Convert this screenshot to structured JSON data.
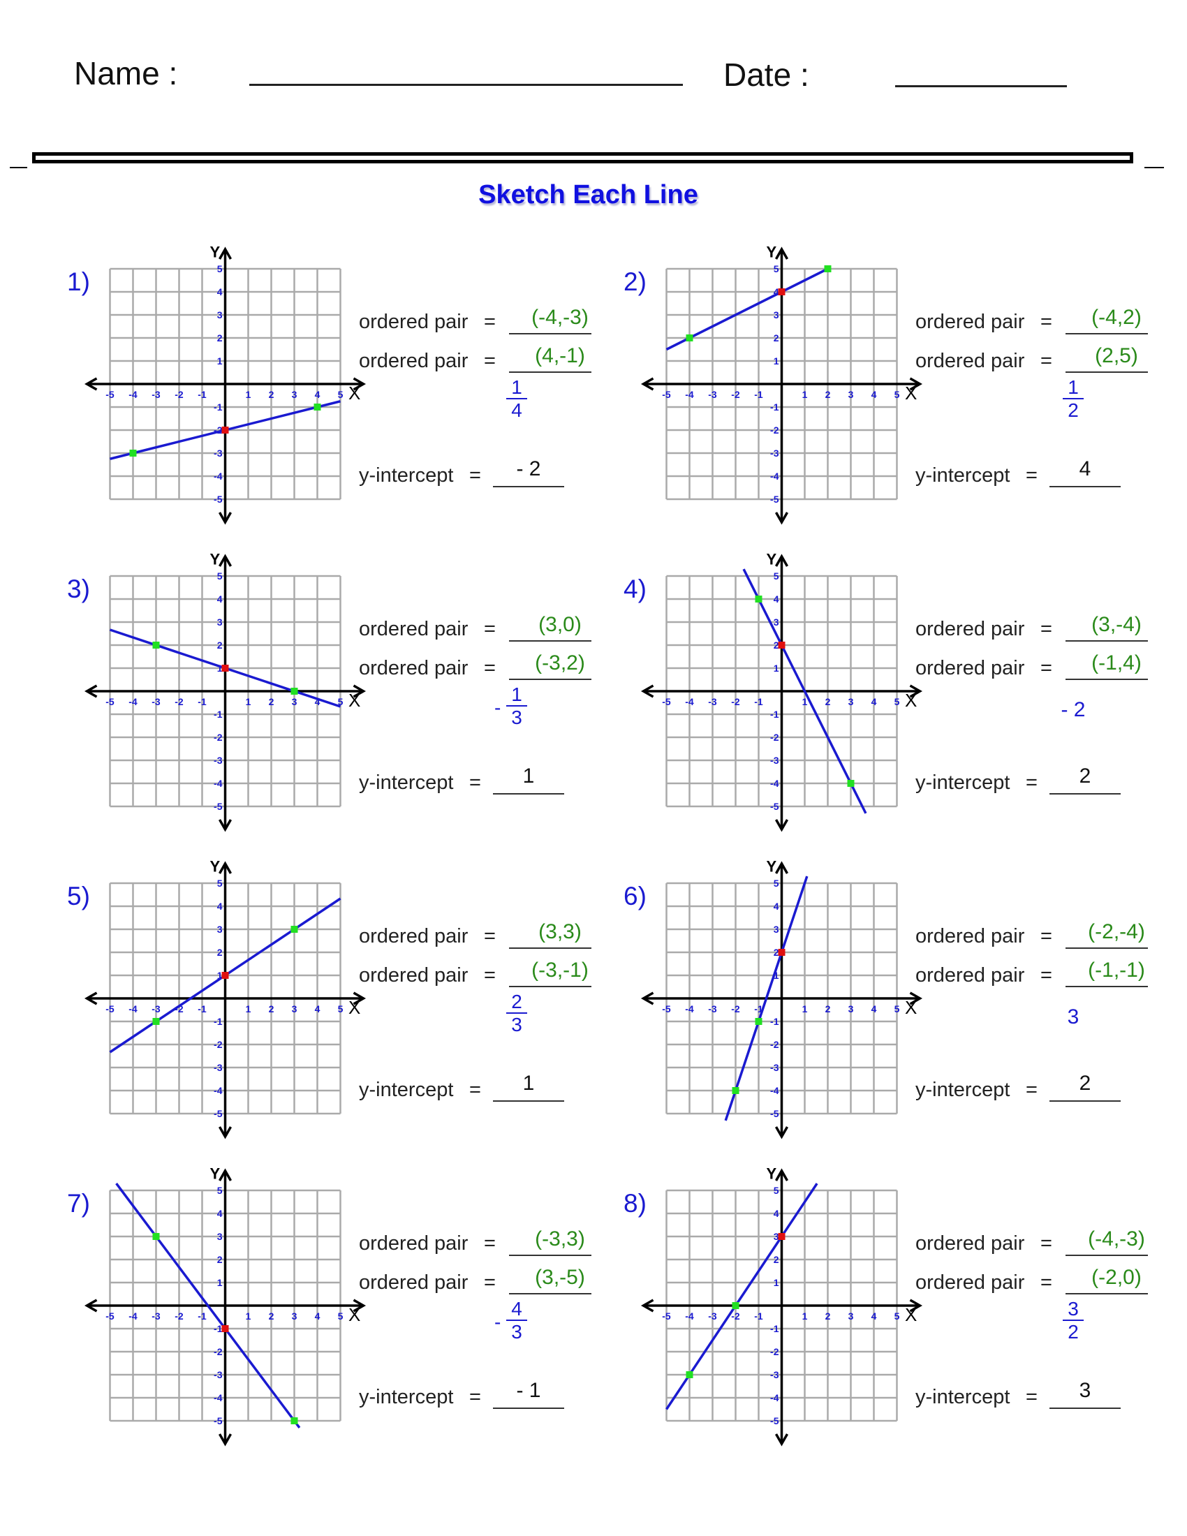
{
  "header": {
    "name_label": "Name :",
    "date_label": "Date :"
  },
  "title": "Sketch Each Line",
  "labels": {
    "ordered_pair": "ordered pair",
    "equals": "=",
    "y_intercept": "y-intercept",
    "x_axis": "X",
    "y_axis": "Y"
  },
  "colors": {
    "line": "#1a1ad0",
    "point": "#22e022",
    "intercept_point": "#e01010",
    "grid": "#aaaaaa",
    "answer": "#2a8a1a",
    "title": "#1010e0"
  },
  "axis_ticks": [
    "-5",
    "-4",
    "-3",
    "-2",
    "-1",
    "1",
    "2",
    "3",
    "4",
    "5"
  ],
  "problems": [
    {
      "number": "1)",
      "pair1": "(-4,-3)",
      "pair2": "(4,-1)",
      "p1": [
        -4,
        -3
      ],
      "p2": [
        4,
        -1
      ],
      "slope": {
        "sign": "",
        "num": "1",
        "den": "4"
      },
      "y_intercept": "- 2",
      "b": -2
    },
    {
      "number": "2)",
      "pair1": "(-4,2)",
      "pair2": "(2,5)",
      "p1": [
        -4,
        2
      ],
      "p2": [
        2,
        5
      ],
      "slope": {
        "sign": "",
        "num": "1",
        "den": "2"
      },
      "y_intercept": "4",
      "b": 4
    },
    {
      "number": "3)",
      "pair1": "(3,0)",
      "pair2": "(-3,2)",
      "p1": [
        3,
        0
      ],
      "p2": [
        -3,
        2
      ],
      "slope": {
        "sign": "-",
        "num": "1",
        "den": "3"
      },
      "y_intercept": "1",
      "b": 1
    },
    {
      "number": "4)",
      "pair1": "(3,-4)",
      "pair2": "(-1,4)",
      "p1": [
        3,
        -4
      ],
      "p2": [
        -1,
        4
      ],
      "slope": {
        "whole": "- 2"
      },
      "y_intercept": "2",
      "b": 2
    },
    {
      "number": "5)",
      "pair1": "(3,3)",
      "pair2": "(-3,-1)",
      "p1": [
        3,
        3
      ],
      "p2": [
        -3,
        -1
      ],
      "slope": {
        "sign": "",
        "num": "2",
        "den": "3"
      },
      "y_intercept": "1",
      "b": 1
    },
    {
      "number": "6)",
      "pair1": "(-2,-4)",
      "pair2": "(-1,-1)",
      "p1": [
        -2,
        -4
      ],
      "p2": [
        -1,
        -1
      ],
      "slope": {
        "whole": "3"
      },
      "y_intercept": "2",
      "b": 2
    },
    {
      "number": "7)",
      "pair1": "(-3,3)",
      "pair2": "(3,-5)",
      "p1": [
        -3,
        3
      ],
      "p2": [
        3,
        -5
      ],
      "slope": {
        "sign": "-",
        "num": "4",
        "den": "3"
      },
      "y_intercept": "- 1",
      "b": -1
    },
    {
      "number": "8)",
      "pair1": "(-4,-3)",
      "pair2": "(-2,0)",
      "p1": [
        -4,
        -3
      ],
      "p2": [
        -2,
        0
      ],
      "slope": {
        "sign": "",
        "num": "3",
        "den": "2"
      },
      "y_intercept": "3",
      "b": 3
    }
  ]
}
